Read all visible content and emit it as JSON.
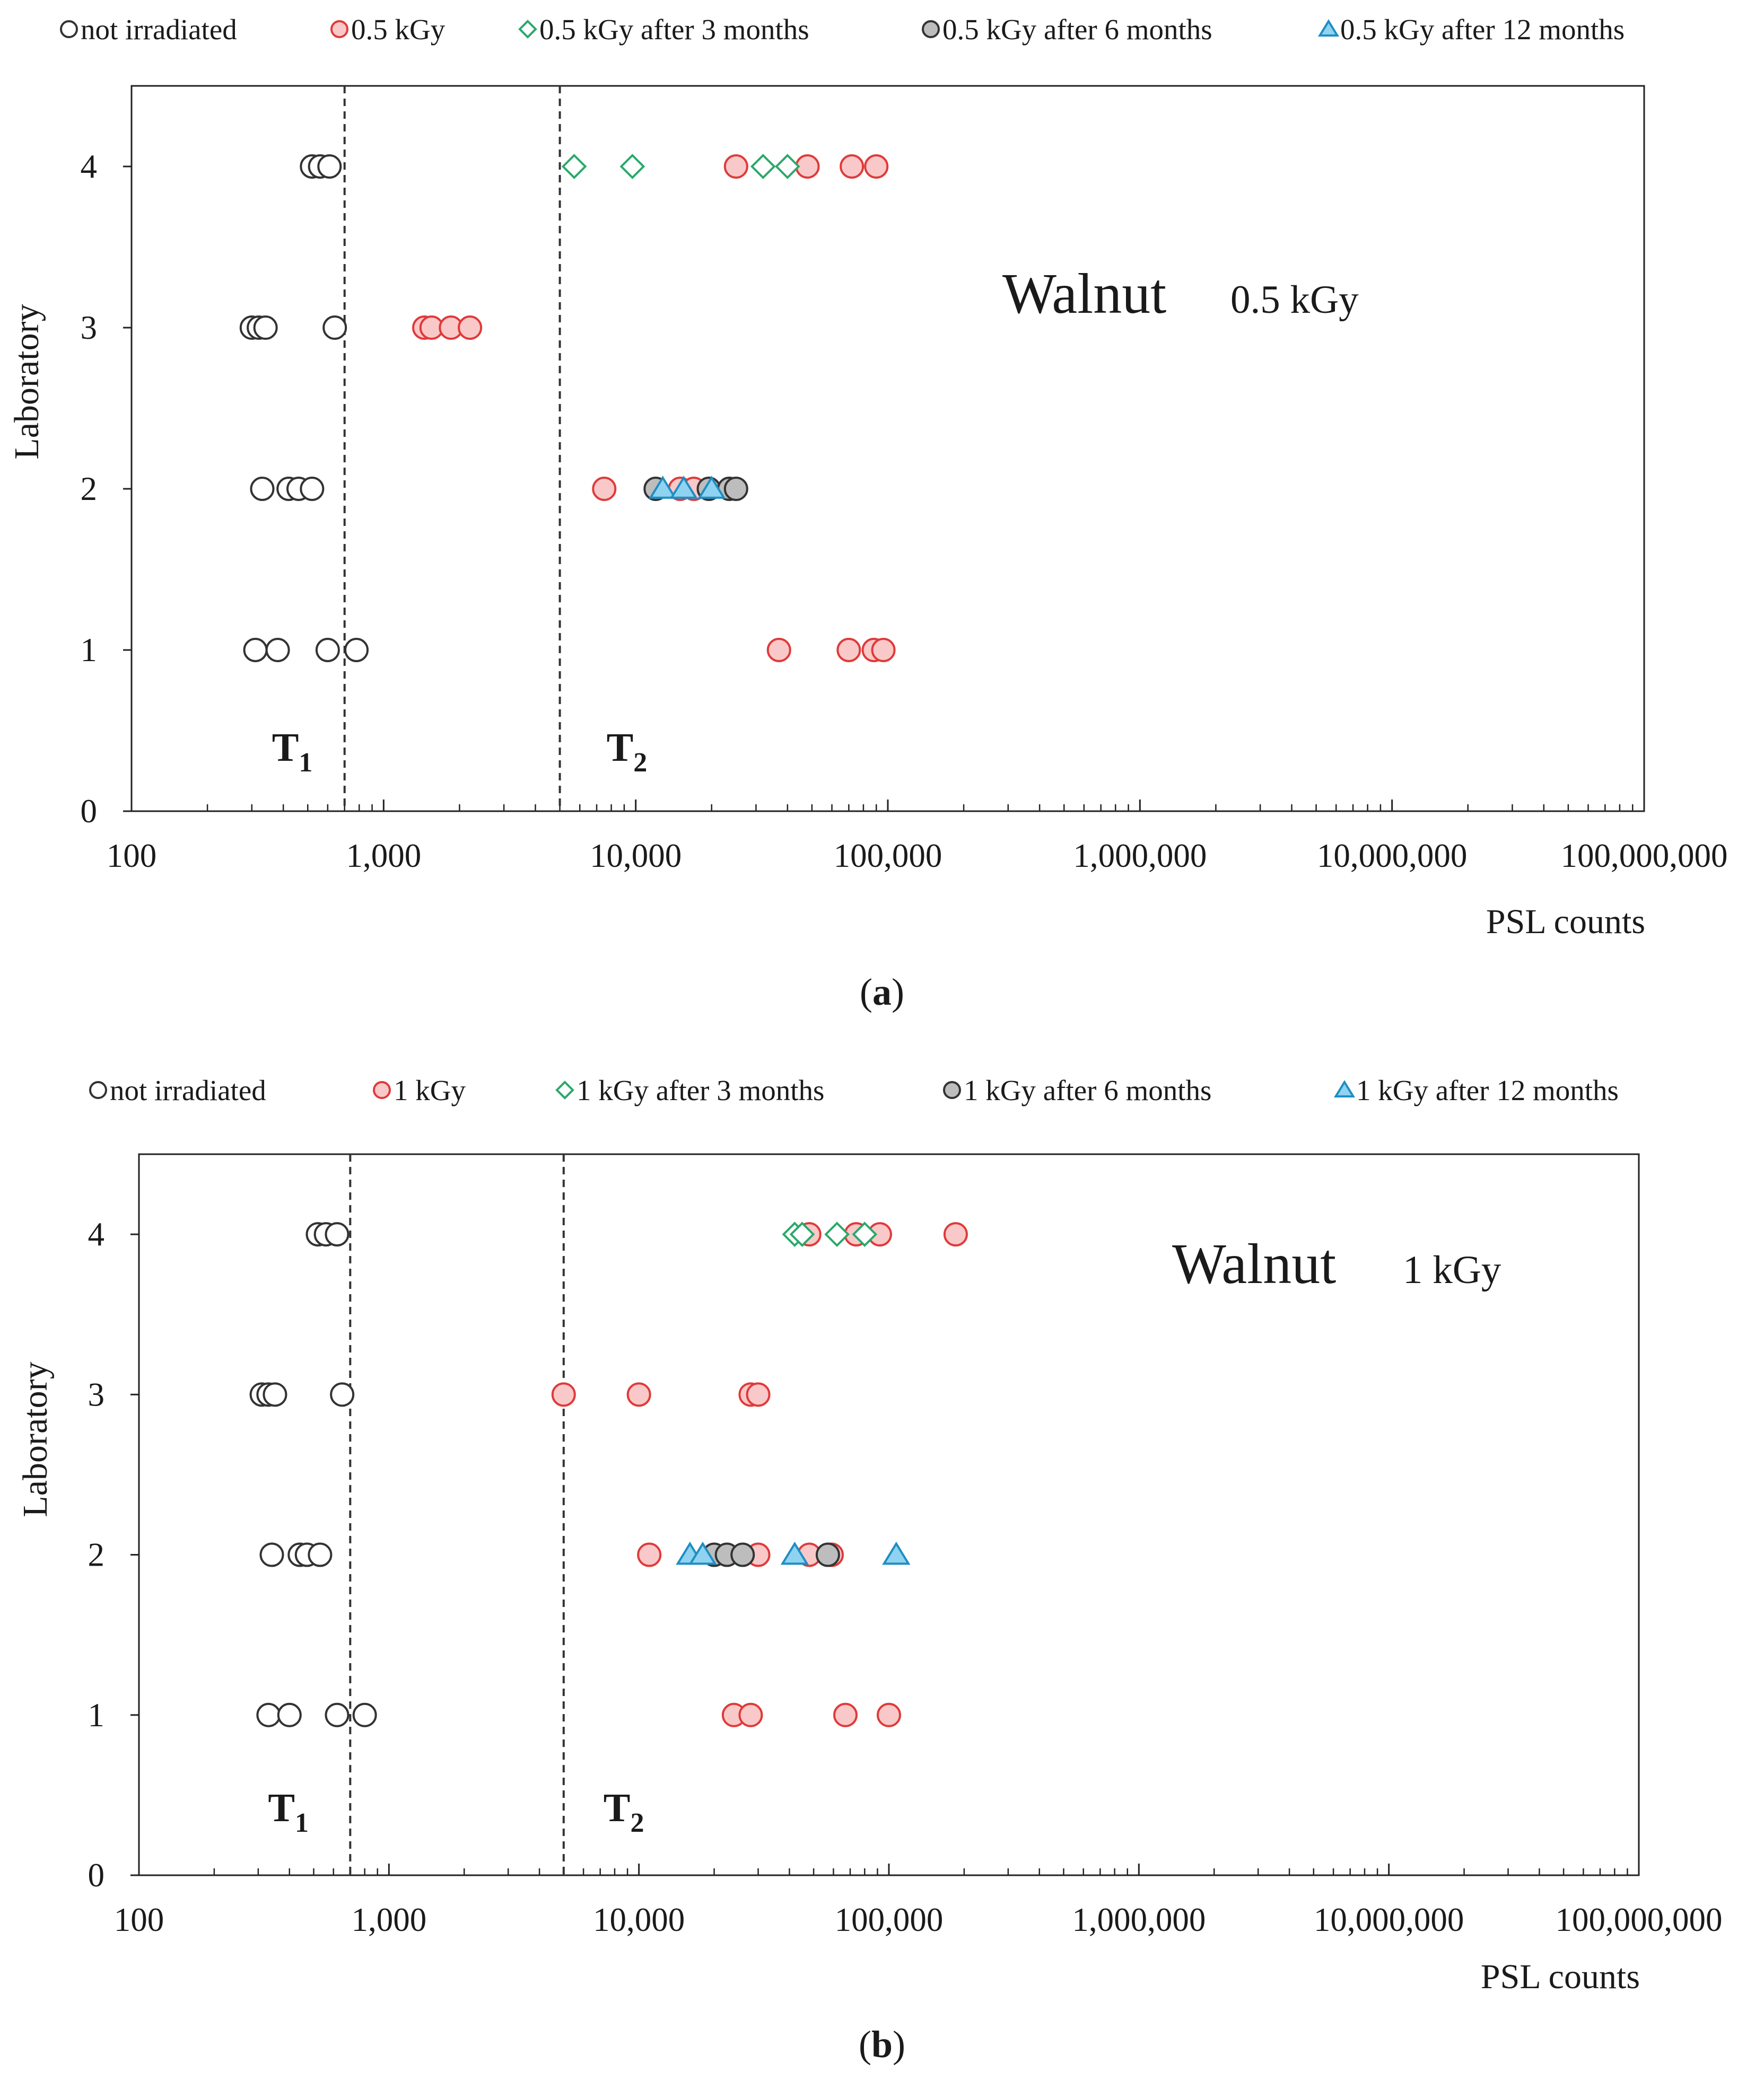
{
  "chart_data": [
    {
      "type": "scatter",
      "panel": "a",
      "caption_letter": "a",
      "annotation_title": "Walnut",
      "annotation_dose": "0.5 kGy",
      "xscale": "log",
      "xlim": [
        100,
        100000000
      ],
      "ylim": [
        0,
        4.5
      ],
      "xlabel": "PSL counts",
      "ylabel": "Laboratory",
      "x_tick_values": [
        100,
        1000,
        10000,
        100000,
        1000000,
        10000000,
        100000000
      ],
      "x_tick_labels": [
        "100",
        "1,000",
        "10,000",
        "100,000",
        "1,000,000",
        "10,000,000",
        "100,000,000"
      ],
      "y_tick_values": [
        0,
        1,
        2,
        3,
        4
      ],
      "y_tick_labels": [
        "0",
        "1",
        "2",
        "3",
        "4"
      ],
      "thresholds": [
        {
          "name": "T",
          "sub": "1",
          "x": 700
        },
        {
          "name": "T",
          "sub": "2",
          "x": 5000
        }
      ],
      "series": [
        {
          "name": "not irradiated",
          "marker": "circle",
          "fill": "#ffffff",
          "stroke": "#333333",
          "points": [
            [
              520,
              4
            ],
            [
              560,
              4
            ],
            [
              610,
              4
            ],
            [
              300,
              3
            ],
            [
              320,
              3
            ],
            [
              340,
              3
            ],
            [
              640,
              3
            ],
            [
              330,
              2
            ],
            [
              420,
              2
            ],
            [
              460,
              2
            ],
            [
              520,
              2
            ],
            [
              310,
              1
            ],
            [
              380,
              1
            ],
            [
              600,
              1
            ],
            [
              780,
              1
            ]
          ]
        },
        {
          "name": "0.5 kGy",
          "marker": "circle",
          "fill": "#f9c9c9",
          "stroke": "#e03a3a",
          "points": [
            [
              25000,
              4
            ],
            [
              48000,
              4
            ],
            [
              72000,
              4
            ],
            [
              90000,
              4
            ],
            [
              1450,
              3
            ],
            [
              1550,
              3
            ],
            [
              1850,
              3
            ],
            [
              2200,
              3
            ],
            [
              7500,
              2
            ],
            [
              15000,
              2
            ],
            [
              17000,
              2
            ],
            [
              37000,
              1
            ],
            [
              70000,
              1
            ],
            [
              88000,
              1
            ],
            [
              96000,
              1
            ]
          ]
        },
        {
          "name": "0.5 kGy after 3 months",
          "marker": "diamond",
          "fill": "#ffffff",
          "stroke": "#2aa86a",
          "points": [
            [
              5700,
              4
            ],
            [
              9700,
              4
            ],
            [
              32000,
              4
            ],
            [
              40000,
              4
            ]
          ]
        },
        {
          "name": "0.5 kGy after 6 months",
          "marker": "circle",
          "fill": "#bdbdbd",
          "stroke": "#333333",
          "points": [
            [
              12000,
              2
            ],
            [
              19500,
              2
            ],
            [
              23500,
              2
            ],
            [
              25000,
              2
            ]
          ]
        },
        {
          "name": "0.5 kGy after 12 months",
          "marker": "triangle",
          "fill": "#8fd3f0",
          "stroke": "#1e8ec4",
          "points": [
            [
              12800,
              2
            ],
            [
              15500,
              2
            ],
            [
              20000,
              2
            ]
          ]
        }
      ]
    },
    {
      "type": "scatter",
      "panel": "b",
      "caption_letter": "b",
      "annotation_title": "Walnut",
      "annotation_dose": "1 kGy",
      "xscale": "log",
      "xlim": [
        100,
        100000000
      ],
      "ylim": [
        0,
        4.5
      ],
      "xlabel": "PSL counts",
      "ylabel": "Laboratory",
      "x_tick_values": [
        100,
        1000,
        10000,
        100000,
        1000000,
        10000000,
        100000000
      ],
      "x_tick_labels": [
        "100",
        "1,000",
        "10,000",
        "100,000",
        "1,000,000",
        "10,000,000",
        "100,000,000"
      ],
      "y_tick_values": [
        0,
        1,
        2,
        3,
        4
      ],
      "y_tick_labels": [
        "0",
        "1",
        "2",
        "3",
        "4"
      ],
      "thresholds": [
        {
          "name": "T",
          "sub": "1",
          "x": 700
        },
        {
          "name": "T",
          "sub": "2",
          "x": 5000
        }
      ],
      "series": [
        {
          "name": "not irradiated",
          "marker": "circle",
          "fill": "#ffffff",
          "stroke": "#333333",
          "points": [
            [
              520,
              4
            ],
            [
              560,
              4
            ],
            [
              620,
              4
            ],
            [
              310,
              3
            ],
            [
              330,
              3
            ],
            [
              350,
              3
            ],
            [
              650,
              3
            ],
            [
              340,
              2
            ],
            [
              440,
              2
            ],
            [
              470,
              2
            ],
            [
              530,
              2
            ],
            [
              330,
              1
            ],
            [
              400,
              1
            ],
            [
              620,
              1
            ],
            [
              800,
              1
            ]
          ]
        },
        {
          "name": "1 kGy",
          "marker": "circle",
          "fill": "#f9c9c9",
          "stroke": "#e03a3a",
          "points": [
            [
              48000,
              4
            ],
            [
              74000,
              4
            ],
            [
              92000,
              4
            ],
            [
              185000,
              4
            ],
            [
              5000,
              3
            ],
            [
              10000,
              3
            ],
            [
              28000,
              3
            ],
            [
              30000,
              3
            ],
            [
              11000,
              2
            ],
            [
              30000,
              2
            ],
            [
              48000,
              2
            ],
            [
              59000,
              2
            ],
            [
              24000,
              1
            ],
            [
              28000,
              1
            ],
            [
              67000,
              1
            ],
            [
              100000,
              1
            ]
          ]
        },
        {
          "name": "1 kGy after 3 months",
          "marker": "diamond",
          "fill": "#ffffff",
          "stroke": "#2aa86a",
          "points": [
            [
              42000,
              4
            ],
            [
              45000,
              4
            ],
            [
              62000,
              4
            ],
            [
              80000,
              4
            ]
          ]
        },
        {
          "name": "1 kGy after 6 months",
          "marker": "circle",
          "fill": "#bdbdbd",
          "stroke": "#333333",
          "points": [
            [
              20000,
              2
            ],
            [
              22500,
              2
            ],
            [
              26000,
              2
            ],
            [
              57000,
              2
            ]
          ]
        },
        {
          "name": "1 kGy after 12 months",
          "marker": "triangle",
          "fill": "#8fd3f0",
          "stroke": "#1e8ec4",
          "points": [
            [
              16000,
              2
            ],
            [
              18000,
              2
            ],
            [
              42000,
              2
            ],
            [
              107000,
              2
            ]
          ]
        }
      ]
    }
  ]
}
